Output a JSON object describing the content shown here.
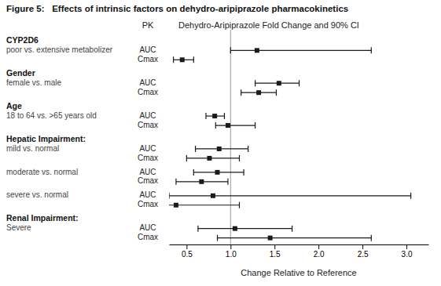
{
  "chart_data": {
    "type": "forest",
    "title": "Figure 5:   Effects of intrinsic factors on dehydro-aripiprazole pharmacokinetics",
    "subtitle": "Dehydro-Aripiprazole Fold Change and 90% CI",
    "xlabel": "Change Relative to Reference",
    "column_header": "PK",
    "groups": [
      "CYP2D6",
      "Gender",
      "Age",
      "Hepatic Impairment:",
      null,
      null,
      "Renal Impairment:"
    ],
    "categories": [
      "poor vs. extensive metabolizer",
      "female vs. male",
      "18 to 64 vs. >65 years old",
      "mild vs. normal",
      "moderate vs. normal",
      "severe vs. normal",
      "Severe"
    ],
    "series": [
      {
        "name": "AUC",
        "values": [
          1.3,
          1.55,
          0.82,
          0.87,
          0.85,
          0.8,
          1.05
        ],
        "lo": [
          1.0,
          1.28,
          0.72,
          0.6,
          0.58,
          0.3,
          0.63
        ],
        "hi": [
          2.6,
          1.78,
          0.93,
          1.2,
          1.15,
          3.05,
          1.7
        ]
      },
      {
        "name": "Cmax",
        "values": [
          0.45,
          1.32,
          0.97,
          0.76,
          0.67,
          0.38,
          1.45
        ],
        "lo": [
          0.35,
          1.12,
          0.83,
          0.5,
          0.38,
          0.27,
          0.85
        ],
        "hi": [
          0.58,
          1.52,
          1.28,
          1.1,
          0.97,
          1.1,
          2.6
        ]
      }
    ],
    "ref_line": 1.0,
    "xlim": [
      0.3,
      3.25
    ],
    "xticks": [
      0.5,
      {
        "value": 1.0,
        "label": "1.0"
      },
      1.5,
      {
        "value": 2.0,
        "label": "2.0"
      },
      2.5,
      {
        "value": 3.0,
        "label": "3.0"
      }
    ],
    "color": "#1a1a1a"
  }
}
